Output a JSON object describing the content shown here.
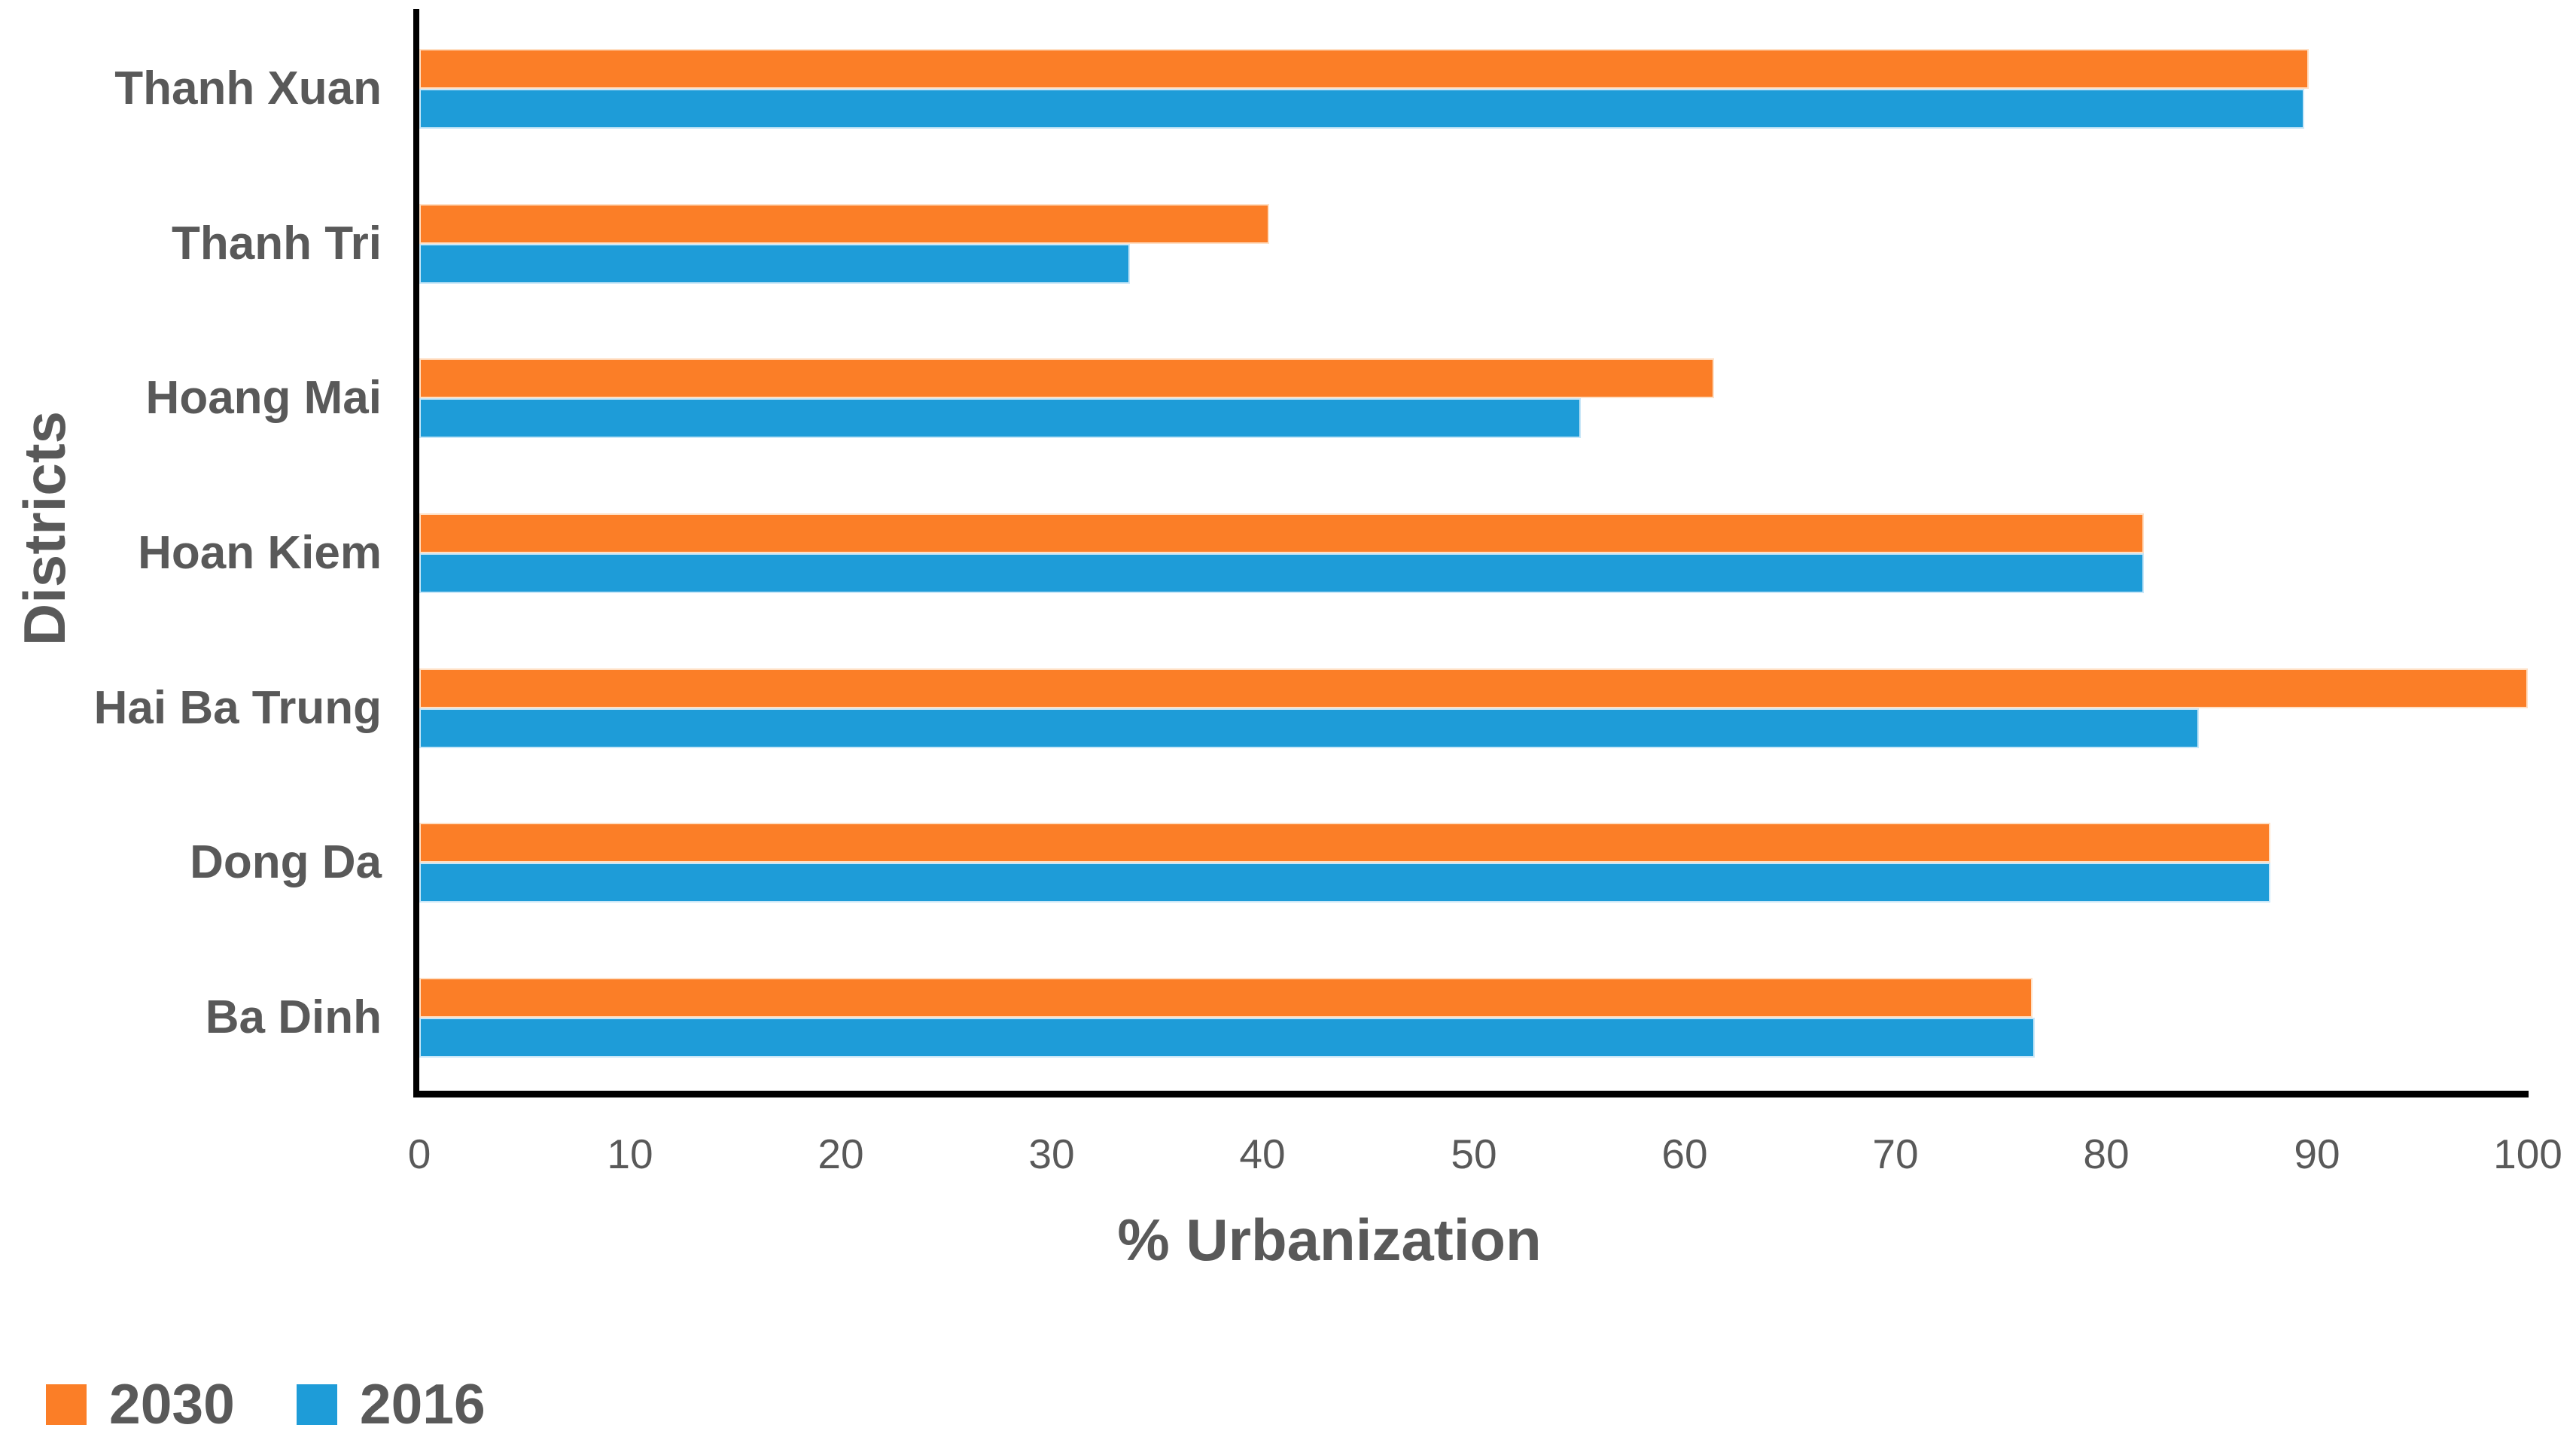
{
  "chart_data": {
    "type": "bar",
    "orientation": "horizontal",
    "title": "",
    "xlabel": "% Urbanization",
    "ylabel": "Districts",
    "categories": [
      "Thanh Xuan",
      "Thanh Tri",
      "Hoang Mai",
      "Hoan Kiem",
      "Hai Ba Trung",
      "Dong Da",
      "Ba Dinh"
    ],
    "series": [
      {
        "name": "2030",
        "color": "#FB7E27",
        "values": [
          89.6,
          40.3,
          61.4,
          81.8,
          100,
          87.8,
          76.5
        ]
      },
      {
        "name": "2016",
        "color": "#1E9CD8",
        "values": [
          89.4,
          33.7,
          55.1,
          81.8,
          84.4,
          87.8,
          76.6
        ]
      }
    ],
    "x_ticks": [
      0,
      10,
      20,
      30,
      40,
      50,
      60,
      70,
      80,
      90,
      100
    ],
    "xlim": [
      0,
      100
    ],
    "grid": false,
    "legend_position": "bottom-left",
    "axis_color": "#000000",
    "text_color": "#595959",
    "background_color": "#ffffff"
  }
}
